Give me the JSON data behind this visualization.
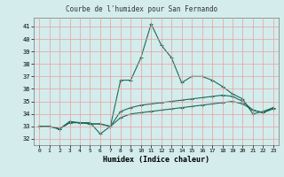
{
  "title": "Courbe de l'humidex pour San Fernando",
  "xlabel": "Humidex (Indice chaleur)",
  "xlim": [
    -0.5,
    23.5
  ],
  "ylim": [
    31.5,
    41.7
  ],
  "yticks": [
    32,
    33,
    34,
    35,
    36,
    37,
    38,
    39,
    40,
    41
  ],
  "xticks": [
    0,
    1,
    2,
    3,
    4,
    5,
    6,
    7,
    8,
    9,
    10,
    11,
    12,
    13,
    14,
    15,
    16,
    17,
    18,
    19,
    20,
    21,
    22,
    23
  ],
  "background_color": "#d4ecec",
  "grid_color": "#e8a0a0",
  "line_color": "#1a6b5a",
  "series": {
    "line1": [
      33.0,
      33.0,
      32.8,
      33.3,
      33.3,
      33.2,
      33.2,
      33.0,
      33.7,
      34.0,
      34.1,
      34.2,
      34.3,
      34.4,
      34.5,
      34.6,
      34.7,
      34.8,
      34.9,
      35.0,
      34.8,
      34.3,
      34.1,
      34.4
    ],
    "line2": [
      33.0,
      33.0,
      32.8,
      33.3,
      33.3,
      33.2,
      33.2,
      33.0,
      34.2,
      34.5,
      34.7,
      34.8,
      34.9,
      35.0,
      35.1,
      35.2,
      35.3,
      35.4,
      35.5,
      35.4,
      35.0,
      34.3,
      34.1,
      34.5
    ],
    "line3": [
      33.0,
      33.0,
      32.8,
      33.4,
      33.3,
      33.3,
      32.4,
      33.0,
      36.7,
      36.7,
      38.5,
      41.2,
      39.5,
      38.5,
      36.5,
      37.0,
      37.0,
      36.7,
      36.2,
      35.6,
      35.2,
      34.0,
      34.2,
      34.5
    ]
  }
}
